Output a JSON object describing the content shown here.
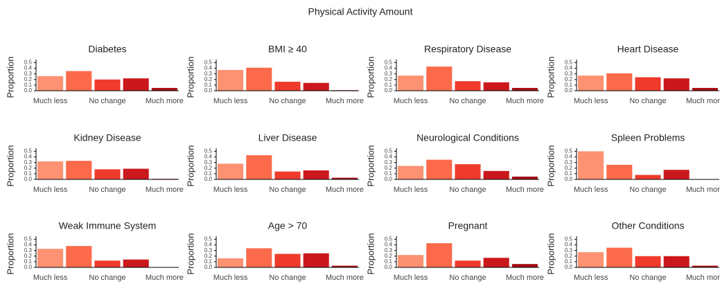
{
  "title": "Physical Activity Amount",
  "chart_data": [
    {
      "type": "bar",
      "title": "Diabetes",
      "y_label": "Proportion",
      "categories": [
        "Much less",
        null,
        "No change",
        null,
        "Much more"
      ],
      "values": [
        0.26,
        0.35,
        0.2,
        0.22,
        0.05
      ],
      "colors": [
        "#fc9272",
        "#fb6a4a",
        "#ef3b2c",
        "#cb181d",
        "#a50f15"
      ],
      "ylim": [
        0,
        0.53
      ],
      "yticks": [
        {
          "value": 0,
          "label": "0.0"
        },
        0.1,
        0.2,
        0.3,
        0.4,
        0.5
      ]
    },
    {
      "type": "bar",
      "title": "BMI ≥ 40",
      "y_label": "Proportion",
      "categories": [
        "Much less",
        null,
        "No change",
        null,
        "Much more"
      ],
      "values": [
        0.37,
        0.41,
        0.16,
        0.14,
        0.01
      ],
      "colors": [
        "#fc9272",
        "#fb6a4a",
        "#ef3b2c",
        "#cb181d",
        "#a50f15"
      ],
      "ylim": [
        0,
        0.53
      ],
      "yticks": [
        {
          "value": 0,
          "label": "0.0"
        },
        0.1,
        0.2,
        0.3,
        0.4,
        0.5
      ]
    },
    {
      "type": "bar",
      "title": "Respiratory Disease",
      "y_label": "Proportion",
      "categories": [
        "Much less",
        null,
        "No change",
        null,
        "Much more"
      ],
      "values": [
        0.27,
        0.43,
        0.17,
        0.15,
        0.05
      ],
      "colors": [
        "#fc9272",
        "#fb6a4a",
        "#ef3b2c",
        "#cb181d",
        "#a50f15"
      ],
      "ylim": [
        0,
        0.53
      ],
      "yticks": [
        {
          "value": 0,
          "label": "0.0"
        },
        0.1,
        0.2,
        0.3,
        0.4,
        0.5
      ]
    },
    {
      "type": "bar",
      "title": "Heart Disease",
      "y_label": "Proportion",
      "categories": [
        "Much less",
        null,
        "No change",
        null,
        "Much more"
      ],
      "values": [
        0.27,
        0.31,
        0.24,
        0.22,
        0.05
      ],
      "colors": [
        "#fc9272",
        "#fb6a4a",
        "#ef3b2c",
        "#cb181d",
        "#a50f15"
      ],
      "ylim": [
        0,
        0.53
      ],
      "yticks": [
        {
          "value": 0,
          "label": "0.0"
        },
        0.1,
        0.2,
        0.3,
        0.4,
        0.5
      ]
    },
    {
      "type": "bar",
      "title": "Kidney Disease",
      "y_label": "Proportion",
      "categories": [
        "Much less",
        null,
        "No change",
        null,
        "Much more"
      ],
      "values": [
        0.32,
        0.33,
        0.18,
        0.19,
        0.01
      ],
      "colors": [
        "#fc9272",
        "#fb6a4a",
        "#ef3b2c",
        "#cb181d",
        "#a50f15"
      ],
      "ylim": [
        0,
        0.53
      ],
      "yticks": [
        {
          "value": 0,
          "label": "0.0"
        },
        0.1,
        0.2,
        0.3,
        0.4,
        0.5
      ]
    },
    {
      "type": "bar",
      "title": "Liver Disease",
      "y_label": "Proportion",
      "categories": [
        "Much less",
        null,
        "No change",
        null,
        "Much more"
      ],
      "values": [
        0.28,
        0.43,
        0.14,
        0.16,
        0.03
      ],
      "colors": [
        "#fc9272",
        "#fb6a4a",
        "#ef3b2c",
        "#cb181d",
        "#a50f15"
      ],
      "ylim": [
        0,
        0.53
      ],
      "yticks": [
        {
          "value": 0,
          "label": "0.0"
        },
        0.1,
        0.2,
        0.3,
        0.4,
        0.5
      ]
    },
    {
      "type": "bar",
      "title": "Neurological Conditions",
      "y_label": "Proportion",
      "categories": [
        "Much less",
        null,
        "No change",
        null,
        "Much more"
      ],
      "values": [
        0.24,
        0.35,
        0.27,
        0.15,
        0.05
      ],
      "colors": [
        "#fc9272",
        "#fb6a4a",
        "#ef3b2c",
        "#cb181d",
        "#a50f15"
      ],
      "ylim": [
        0,
        0.53
      ],
      "yticks": [
        {
          "value": 0,
          "label": "0.0"
        },
        0.1,
        0.2,
        0.3,
        0.4,
        0.5
      ]
    },
    {
      "type": "bar",
      "title": "Spleen Problems",
      "y_label": "Proportion",
      "categories": [
        "Much less",
        null,
        "No change",
        null,
        "Much more"
      ],
      "values": [
        0.5,
        0.26,
        0.08,
        0.17,
        0
      ],
      "colors": [
        "#fc9272",
        "#fb6a4a",
        "#ef3b2c",
        "#cb181d",
        "#a50f15"
      ],
      "ylim": [
        0,
        0.53
      ],
      "yticks": [
        {
          "value": 0,
          "label": "0.0"
        },
        0.1,
        0.2,
        0.3,
        0.4,
        0.5
      ]
    },
    {
      "type": "bar",
      "title": "Weak Immune System",
      "y_label": "Proportion",
      "categories": [
        "Much less",
        null,
        "No change",
        null,
        "Much more"
      ],
      "values": [
        0.33,
        0.38,
        0.12,
        0.14,
        0
      ],
      "colors": [
        "#fc9272",
        "#fb6a4a",
        "#ef3b2c",
        "#cb181d",
        "#a50f15"
      ],
      "ylim": [
        0,
        0.53
      ],
      "yticks": [
        {
          "value": 0,
          "label": "0.0"
        },
        0.1,
        0.2,
        0.3,
        0.4,
        0.5
      ]
    },
    {
      "type": "bar",
      "title": "Age > 70",
      "y_label": "Proportion",
      "categories": [
        "Much less",
        null,
        "No change",
        null,
        "Much more"
      ],
      "values": [
        0.16,
        0.34,
        0.24,
        0.25,
        0.03
      ],
      "colors": [
        "#fc9272",
        "#fb6a4a",
        "#ef3b2c",
        "#cb181d",
        "#a50f15"
      ],
      "ylim": [
        0,
        0.53
      ],
      "yticks": [
        {
          "value": 0,
          "label": "0.0"
        },
        0.1,
        0.2,
        0.3,
        0.4,
        0.5
      ]
    },
    {
      "type": "bar",
      "title": "Pregnant",
      "y_label": "Proportion",
      "categories": [
        "Much less",
        null,
        "No change",
        null,
        "Much more"
      ],
      "values": [
        0.22,
        0.43,
        0.12,
        0.17,
        0.06
      ],
      "colors": [
        "#fc9272",
        "#fb6a4a",
        "#ef3b2c",
        "#cb181d",
        "#a50f15"
      ],
      "ylim": [
        0,
        0.53
      ],
      "yticks": [
        {
          "value": 0,
          "label": "0.0"
        },
        0.1,
        0.2,
        0.3,
        0.4,
        0.5
      ]
    },
    {
      "type": "bar",
      "title": "Other Conditions",
      "y_label": "Proportion",
      "categories": [
        "Much less",
        null,
        "No change",
        null,
        "Much more"
      ],
      "values": [
        0.27,
        0.35,
        0.2,
        0.2,
        0.03
      ],
      "colors": [
        "#fc9272",
        "#fb6a4a",
        "#ef3b2c",
        "#cb181d",
        "#a50f15"
      ],
      "ylim": [
        0,
        0.53
      ],
      "yticks": [
        {
          "value": 0,
          "label": "0.0"
        },
        0.1,
        0.2,
        0.3,
        0.4,
        0.5
      ]
    }
  ]
}
